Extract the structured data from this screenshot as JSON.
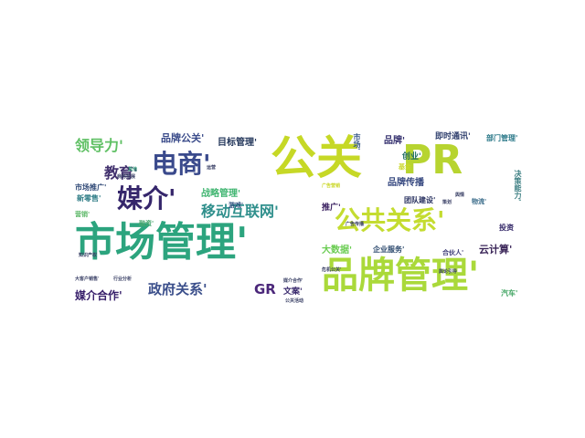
{
  "words": [
    {
      "text": "公关",
      "size": 50,
      "color": "#c6d826"
    },
    {
      "text": "PR",
      "size": 44,
      "color": "#b7d430"
    },
    {
      "text": "市场管理'",
      "size": 44,
      "color": "#2ca47e"
    },
    {
      "text": "品牌管理'",
      "size": 40,
      "color": "#aad93a"
    },
    {
      "text": "电商'",
      "size": 28,
      "color": "#3a4a8c"
    },
    {
      "text": "媒介'",
      "size": 28,
      "color": "#35266b"
    },
    {
      "text": "公共关系'",
      "size": 28,
      "color": "#c4dc30"
    },
    {
      "text": "移动互联网'",
      "size": 16,
      "color": "#2f8f8c"
    },
    {
      "text": "领导力'",
      "size": 16,
      "color": "#5fc064"
    },
    {
      "text": "教育'",
      "size": 16,
      "color": "#41306d"
    },
    {
      "text": "品牌公关'",
      "size": 11,
      "color": "#3a4b8a"
    },
    {
      "text": "目标管理'",
      "size": 10,
      "color": "#25385c"
    },
    {
      "text": "战略管理'",
      "size": 10,
      "color": "#42b672"
    },
    {
      "text": "政府关系'",
      "size": 15,
      "color": "#3b4f8b"
    },
    {
      "text": "GR",
      "size": 15,
      "color": "#4b277a"
    },
    {
      "text": "媒介合作'",
      "size": 12,
      "color": "#38206b"
    },
    {
      "text": "文案'",
      "size": 9,
      "color": "#3a2a6e"
    },
    {
      "text": "品牌传播",
      "size": 10,
      "color": "#35477f"
    },
    {
      "text": "品牌'",
      "size": 10,
      "color": "#34306e"
    },
    {
      "text": "创业'",
      "size": 9,
      "color": "#1f6d64"
    },
    {
      "text": "即时通讯'",
      "size": 9,
      "color": "#30406e"
    },
    {
      "text": "部门管理'",
      "size": 8,
      "color": "#2d7a8a"
    },
    {
      "text": "团队建设'",
      "size": 8,
      "color": "#27305f"
    },
    {
      "text": "推广'",
      "size": 9,
      "color": "#3a2060"
    },
    {
      "text": "大数据'",
      "size": 10,
      "color": "#6acc52"
    },
    {
      "text": "企业服务'",
      "size": 8,
      "color": "#2d4a6e"
    },
    {
      "text": "合伙人'",
      "size": 7,
      "color": "#3f3d78"
    },
    {
      "text": "云计算'",
      "size": 11,
      "color": "#3a2558"
    },
    {
      "text": "投资",
      "size": 8,
      "color": "#362a6a"
    },
    {
      "text": "游戏'",
      "size": 7,
      "color": "#2a4e7c"
    },
    {
      "text": "新零售'",
      "size": 8,
      "color": "#2e7c86"
    },
    {
      "text": "市场推广'",
      "size": 8,
      "color": "#314a77"
    },
    {
      "text": "营销'",
      "size": 7,
      "color": "#5db868"
    },
    {
      "text": "融资'",
      "size": 7,
      "color": "#4aa770"
    },
    {
      "text": "基金",
      "size": 7,
      "color": "#cad728"
    },
    {
      "text": "物流'",
      "size": 7,
      "color": "#3a6c8a"
    },
    {
      "text": "汽车'",
      "size": 8,
      "color": "#48a868"
    },
    {
      "text": "市场'",
      "size": 8,
      "color": "#3a5a8a"
    },
    {
      "text": "决策能力'",
      "size": 8,
      "color": "#3d7f83"
    },
    {
      "text": "大客户销售'",
      "size": 5,
      "color": "#3a4066"
    },
    {
      "text": "行业分析",
      "size": 5,
      "color": "#3a4066"
    },
    {
      "text": "其他",
      "size": 5,
      "color": "#3ba47f"
    },
    {
      "text": "商务拓展",
      "size": 5,
      "color": "#3a4066"
    },
    {
      "text": "运营",
      "size": 5,
      "color": "#3a4066"
    },
    {
      "text": "广告营销",
      "size": 5,
      "color": "#cad728"
    },
    {
      "text": "媒介合作'",
      "size": 5,
      "color": "#3a4066"
    },
    {
      "text": "舆情",
      "size": 5,
      "color": "#3a4066"
    },
    {
      "text": "策划",
      "size": 5,
      "color": "#3a4066"
    },
    {
      "text": "危机公关'",
      "size": 5,
      "color": "#3a4066"
    },
    {
      "text": "舆论引导",
      "size": 5,
      "color": "#3a4066"
    },
    {
      "text": "公关活动",
      "size": 5,
      "color": "#3a4066"
    },
    {
      "text": "广告传播",
      "size": 5,
      "color": "#3a4066"
    },
    {
      "text": "知识产权",
      "size": 5,
      "color": "#3a4066"
    }
  ]
}
